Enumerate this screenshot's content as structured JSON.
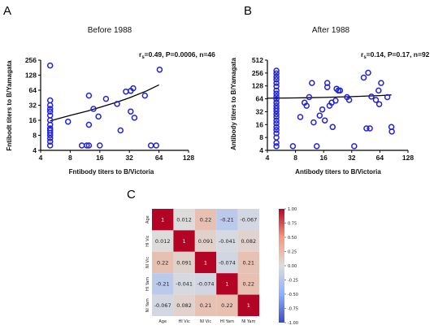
{
  "chart_data": [
    {
      "panel": "A",
      "type": "scatter",
      "title": "Before 1988",
      "stat_text": "r",
      "stat_sub": "s",
      "stat_rest": "=0.49, P=0.0006, n=46",
      "xlabel": "Fntibody titers to B/Victoria",
      "ylabel": "Fntibodt titers to B/Yamagata",
      "x_scale": "log2",
      "y_scale": "log2",
      "xlim": [
        4,
        128
      ],
      "ylim": [
        4,
        256
      ],
      "xticks": [
        "4",
        "8",
        "16",
        "32",
        "64",
        "128"
      ],
      "yticks": [
        "4",
        "8",
        "16",
        "32",
        "64",
        "128",
        "256"
      ],
      "marker_color": "#2222dd",
      "points": [
        [
          5,
          200
        ],
        [
          5,
          40
        ],
        [
          5,
          32
        ],
        [
          5,
          27
        ],
        [
          5,
          24
        ],
        [
          5,
          20
        ],
        [
          5,
          16
        ],
        [
          5,
          13
        ],
        [
          5,
          11
        ],
        [
          5,
          10
        ],
        [
          5,
          9
        ],
        [
          5,
          8
        ],
        [
          5,
          7
        ],
        [
          5,
          6
        ],
        [
          5,
          5
        ],
        [
          7.6,
          15
        ],
        [
          10.5,
          5
        ],
        [
          11.8,
          5
        ],
        [
          12.4,
          5
        ],
        [
          12.4,
          50
        ],
        [
          12.4,
          13
        ],
        [
          13.8,
          27
        ],
        [
          15.5,
          19
        ],
        [
          16,
          5
        ],
        [
          18.5,
          43
        ],
        [
          24,
          34
        ],
        [
          26,
          10
        ],
        [
          29.5,
          60
        ],
        [
          33,
          62
        ],
        [
          33,
          24
        ],
        [
          35,
          70
        ],
        [
          36,
          18
        ],
        [
          46,
          50
        ],
        [
          53,
          5
        ],
        [
          60,
          5
        ],
        [
          65,
          165
        ]
      ],
      "trend": {
        "x": [
          5,
          8,
          12,
          16,
          24,
          32,
          48,
          64
        ],
        "y": [
          15.5,
          20,
          24.5,
          29,
          37,
          45,
          62,
          82
        ]
      }
    },
    {
      "panel": "B",
      "type": "scatter",
      "title": "After 1988",
      "stat_text": "r",
      "stat_sub": "s",
      "stat_rest": "=0.14, P=0.17, n=92",
      "xlabel": "Antibody titers to B/Victoria",
      "ylabel": "Antibody titers to B/Yamagata",
      "x_scale": "log2",
      "y_scale": "log2",
      "xlim": [
        4,
        128
      ],
      "ylim": [
        4,
        512
      ],
      "xticks": [
        "4",
        "8",
        "16",
        "32",
        "64",
        "128"
      ],
      "yticks": [
        "4",
        "8",
        "16",
        "32",
        "64",
        "128",
        "256",
        "512"
      ],
      "marker_color": "#2222dd",
      "points": [
        [
          5,
          290
        ],
        [
          5,
          250
        ],
        [
          5,
          210
        ],
        [
          5,
          180
        ],
        [
          5,
          150
        ],
        [
          5,
          125
        ],
        [
          5,
          100
        ],
        [
          5,
          85
        ],
        [
          5,
          72
        ],
        [
          5,
          62
        ],
        [
          5,
          52
        ],
        [
          5,
          44
        ],
        [
          5,
          38
        ],
        [
          5,
          33
        ],
        [
          5,
          28
        ],
        [
          5,
          24
        ],
        [
          5,
          20
        ],
        [
          5,
          17
        ],
        [
          5,
          14
        ],
        [
          5,
          12
        ],
        [
          5,
          10
        ],
        [
          5,
          8
        ],
        [
          5,
          6
        ],
        [
          5,
          5
        ],
        [
          7.5,
          5
        ],
        [
          9,
          24
        ],
        [
          10,
          52
        ],
        [
          10.5,
          44
        ],
        [
          11.2,
          70
        ],
        [
          12,
          150
        ],
        [
          12.5,
          18
        ],
        [
          13.5,
          5
        ],
        [
          14.5,
          26
        ],
        [
          15.5,
          36
        ],
        [
          16.5,
          20
        ],
        [
          17.5,
          150
        ],
        [
          17.5,
          120
        ],
        [
          18.5,
          44
        ],
        [
          19.5,
          52
        ],
        [
          20,
          14
        ],
        [
          21.5,
          58
        ],
        [
          22,
          110
        ],
        [
          23,
          100
        ],
        [
          24,
          100
        ],
        [
          28.5,
          70
        ],
        [
          30,
          60
        ],
        [
          34,
          5
        ],
        [
          43,
          200
        ],
        [
          46,
          13
        ],
        [
          48,
          260
        ],
        [
          50,
          13
        ],
        [
          52,
          72
        ],
        [
          58,
          60
        ],
        [
          62,
          100
        ],
        [
          63,
          48
        ],
        [
          66,
          150
        ],
        [
          77,
          70
        ],
        [
          85,
          14
        ],
        [
          86,
          11
        ]
      ],
      "trend": {
        "x": [
          4,
          8,
          16,
          32,
          64,
          85
        ],
        "y": [
          66,
          67,
          69,
          72,
          76,
          79
        ]
      }
    },
    {
      "panel": "C",
      "type": "heatmap",
      "labels": [
        "Age",
        "HI Vic",
        "NI Vic",
        "HI Yam",
        "NI Yam"
      ],
      "matrix": [
        [
          1,
          0.012,
          0.22,
          -0.21,
          -0.067
        ],
        [
          0.012,
          1,
          0.091,
          -0.041,
          0.082
        ],
        [
          0.22,
          0.091,
          1,
          -0.074,
          0.21
        ],
        [
          -0.21,
          -0.041,
          -0.074,
          1,
          0.22
        ],
        [
          -0.067,
          0.082,
          0.21,
          0.22,
          1
        ]
      ],
      "cell_text": [
        [
          "1",
          "0.012",
          "0.22",
          "-0.21",
          "-0.067"
        ],
        [
          "0.012",
          "1",
          "0.091",
          "-0.041",
          "0.082"
        ],
        [
          "0.22",
          "0.091",
          "1",
          "-0.074",
          "0.21"
        ],
        [
          "-0.21",
          "-0.041",
          "-0.074",
          "1",
          "0.22"
        ],
        [
          "-0.067",
          "0.082",
          "0.21",
          "0.22",
          "1"
        ]
      ],
      "colorbar": {
        "min": -1,
        "max": 1,
        "ticks": [
          "1.00",
          "0.75",
          "0.50",
          "0.25",
          "0.00",
          "-0.25",
          "-0.50",
          "-0.75",
          "-1.00"
        ],
        "colormap": "coolwarm"
      }
    }
  ]
}
